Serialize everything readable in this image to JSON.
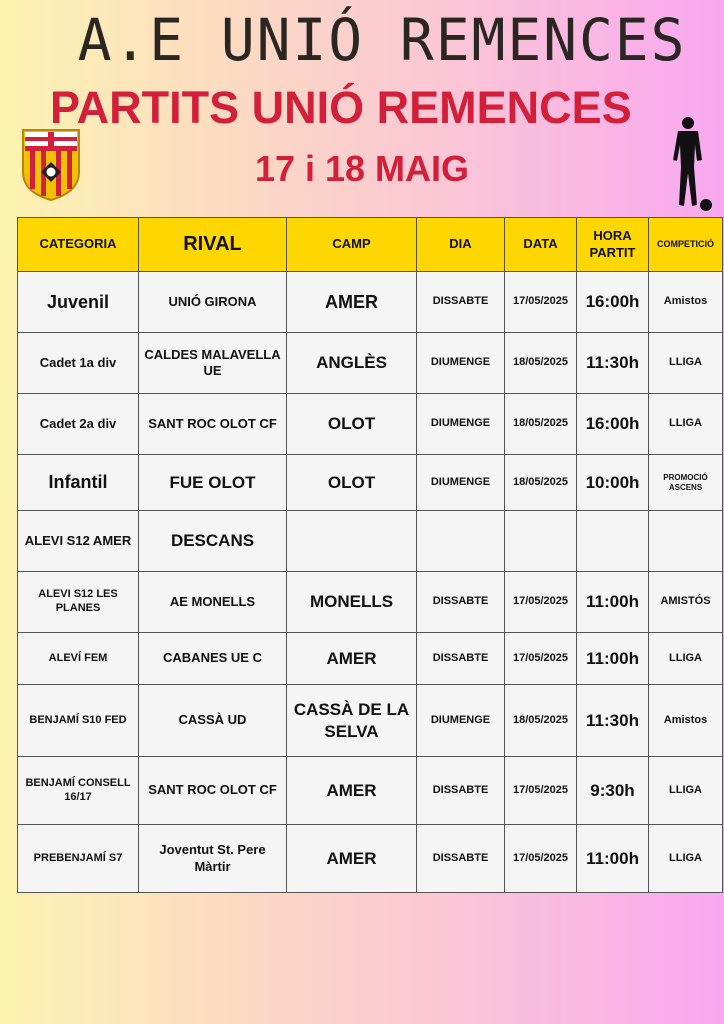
{
  "header": {
    "club_title": "A.E UNIÓ REMENCES",
    "subtitle": "PARTITS UNIÓ REMENCES",
    "dates": "17 i 18 MAIG",
    "logo_text": "AE UNIÓ REMENCES",
    "logo_icon": "club-crest-icon",
    "player_icon": "football-player-silhouette-icon"
  },
  "colors": {
    "title_red": "#d3203a",
    "header_yellow": "#ffd700",
    "cell_bg": "#f5f5f5"
  },
  "table": {
    "columns": [
      "CATEGORIA",
      "RIVAL",
      "CAMP",
      "DIA",
      "DATA",
      "HORA PARTIT",
      "COMPETICIÓ"
    ],
    "rows": [
      [
        "Juvenil",
        "UNIÓ GIRONA",
        "AMER",
        "DISSABTE",
        "17/05/2025",
        "16:00h",
        "Amistos"
      ],
      [
        "Cadet 1a div",
        "CALDES MALAVELLA UE",
        "ANGLÈS",
        "DIUMENGE",
        "18/05/2025",
        "11:30h",
        "LLIGA"
      ],
      [
        "Cadet 2a div",
        "SANT ROC OLOT CF",
        "OLOT",
        "DIUMENGE",
        "18/05/2025",
        "16:00h",
        "LLIGA"
      ],
      [
        "Infantil",
        "FUE OLOT",
        "OLOT",
        "DIUMENGE",
        "18/05/2025",
        "10:00h",
        "PROMOCIÓ ASCENS"
      ],
      [
        "ALEVI S12 AMER",
        "DESCANS",
        "",
        "",
        "",
        "",
        ""
      ],
      [
        "ALEVI S12 LES PLANES",
        "AE MONELLS",
        "MONELLS",
        "DISSABTE",
        "17/05/2025",
        "11:00h",
        "AMISTÓS"
      ],
      [
        "ALEVÍ FEM",
        "CABANES UE C",
        "AMER",
        "DISSABTE",
        "17/05/2025",
        "11:00h",
        "LLIGA"
      ],
      [
        "BENJAMÍ S10 FED",
        "CASSÀ UD",
        "CASSÀ DE LA SELVA",
        "DIUMENGE",
        "18/05/2025",
        "11:30h",
        "Amistos"
      ],
      [
        "BENJAMÍ CONSELL 16/17",
        "SANT ROC OLOT CF",
        "AMER",
        "DISSABTE",
        "17/05/2025",
        "9:30h",
        "LLIGA"
      ],
      [
        "PREBENJAMÍ S7",
        "Joventut St. Pere Màrtir",
        "AMER",
        "DISSABTE",
        "17/05/2025",
        "11:00h",
        "LLIGA"
      ]
    ]
  }
}
